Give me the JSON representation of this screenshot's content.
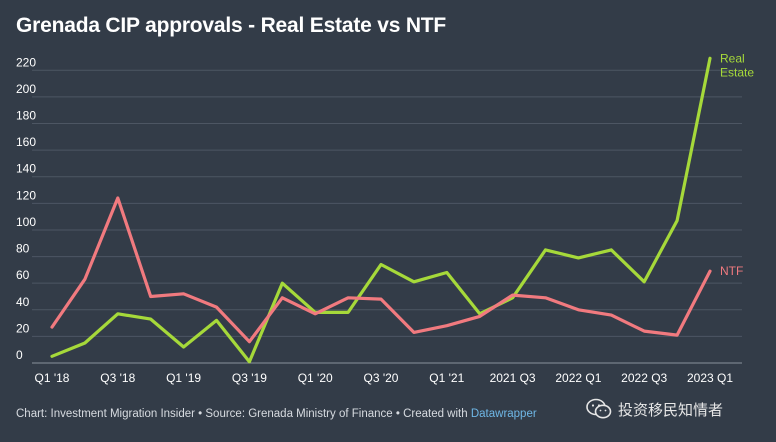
{
  "title": "Grenada CIP approvals - Real Estate vs NTF",
  "footer": {
    "text": "Chart: Investment Migration Insider • Source: Grenada Ministry of Finance • Created with ",
    "link": "Datawrapper"
  },
  "watermark": {
    "text": "投资移民知情者",
    "icon": "wechat-icon"
  },
  "colors": {
    "background": "#333c48",
    "real_estate": "#a6d93a",
    "ntf": "#f17a7f",
    "grid": "#4d5663"
  },
  "chart_data": {
    "type": "line",
    "title": "Grenada CIP approvals - Real Estate vs NTF",
    "x": [
      "Q1 2018",
      "Q2 2018",
      "Q3 2018",
      "Q4 2018",
      "Q1 2019",
      "Q2 2019",
      "Q3 2019",
      "Q4 2019",
      "Q1 2020",
      "Q2 2020",
      "Q3 2020",
      "Q4 2020",
      "Q1 2021",
      "Q2 2021",
      "Q3 2021",
      "Q4 2021",
      "Q1 2022",
      "Q2 2022",
      "Q3 2022",
      "Q4 2022",
      "Q1 2023"
    ],
    "x_tick_labels": [
      {
        "index": 0,
        "label": "Q1 '18"
      },
      {
        "index": 2,
        "label": "Q3 '18"
      },
      {
        "index": 4,
        "label": "Q1 '19"
      },
      {
        "index": 6,
        "label": "Q3 '19"
      },
      {
        "index": 8,
        "label": "Q1 '20"
      },
      {
        "index": 10,
        "label": "Q3 '20"
      },
      {
        "index": 12,
        "label": "Q1 '21"
      },
      {
        "index": 14,
        "label": "2021 Q3"
      },
      {
        "index": 16,
        "label": "2022 Q1"
      },
      {
        "index": 18,
        "label": "2022 Q3"
      },
      {
        "index": 20,
        "label": "2023 Q1"
      }
    ],
    "y_ticks": [
      0,
      20,
      40,
      60,
      80,
      100,
      120,
      140,
      160,
      180,
      200,
      220
    ],
    "ylim": [
      0,
      230
    ],
    "grid": true,
    "series": [
      {
        "name": "Real Estate",
        "label_lines": [
          "Real",
          "Estate"
        ],
        "color": "#a6d93a",
        "values": [
          5,
          15,
          37,
          33,
          12,
          32,
          1,
          60,
          38,
          38,
          74,
          61,
          68,
          37,
          49,
          85,
          79,
          85,
          61,
          107,
          229
        ]
      },
      {
        "name": "NTF",
        "label_lines": [
          "NTF"
        ],
        "color": "#f17a7f",
        "values": [
          27,
          63,
          124,
          50,
          52,
          42,
          16,
          49,
          37,
          49,
          48,
          23,
          28,
          35,
          51,
          49,
          40,
          36,
          24,
          21,
          69
        ]
      }
    ]
  }
}
